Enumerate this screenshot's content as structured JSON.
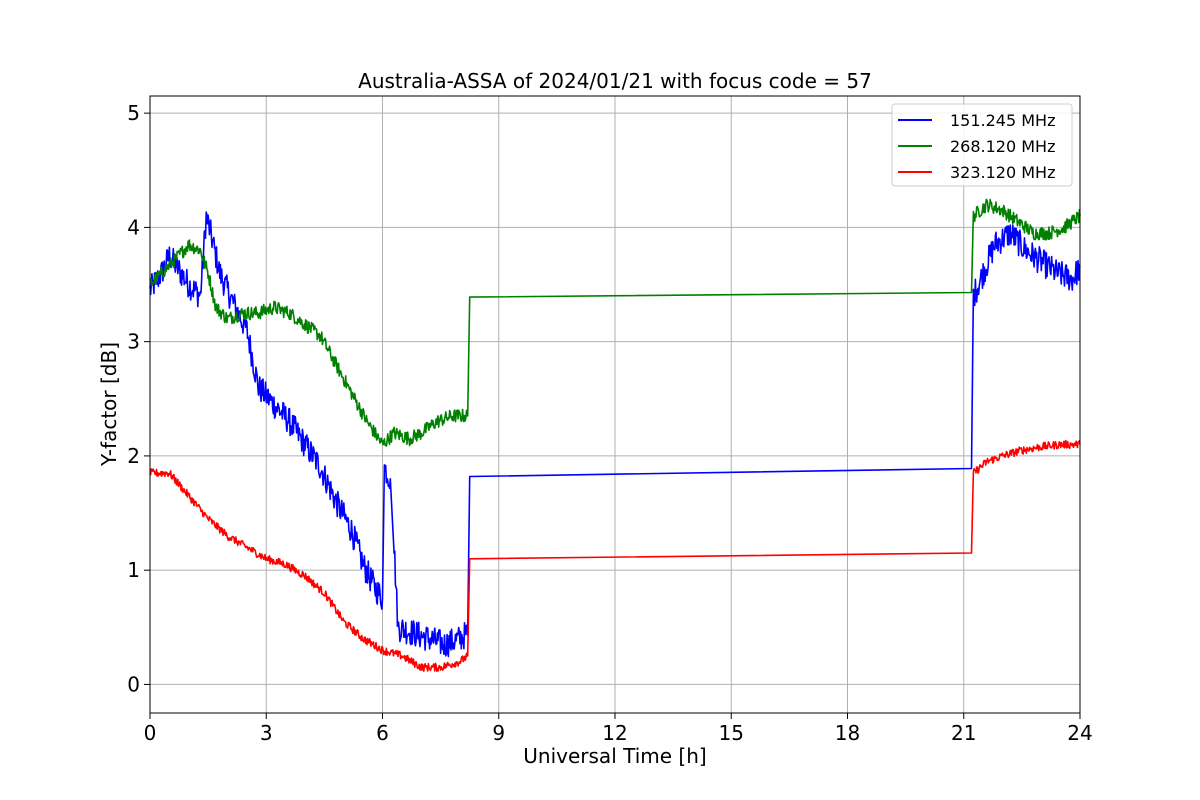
{
  "chart_data": {
    "type": "line",
    "title": "Australia-ASSA of 2024/01/21 with focus code = 57",
    "xlabel": "Universal Time [h]",
    "ylabel": "Y-factor [dB]",
    "xlim": [
      0,
      24
    ],
    "ylim": [
      -0.25,
      5.15
    ],
    "xticks": [
      0,
      3,
      6,
      9,
      12,
      15,
      18,
      21,
      24
    ],
    "yticks": [
      0,
      1,
      2,
      3,
      4,
      5
    ],
    "grid": true,
    "legend_position": "top-right",
    "series": [
      {
        "name": "151.245 MHz",
        "color": "#0000ff",
        "noise": 0.12,
        "points": [
          [
            0,
            3.45
          ],
          [
            0.3,
            3.6
          ],
          [
            0.5,
            3.75
          ],
          [
            0.8,
            3.6
          ],
          [
            1.0,
            3.5
          ],
          [
            1.3,
            3.4
          ],
          [
            1.45,
            4.1
          ],
          [
            1.6,
            3.9
          ],
          [
            1.8,
            3.6
          ],
          [
            2.2,
            3.3
          ],
          [
            2.5,
            3.1
          ],
          [
            2.8,
            2.6
          ],
          [
            3.2,
            2.45
          ],
          [
            3.6,
            2.3
          ],
          [
            4.0,
            2.1
          ],
          [
            4.4,
            1.9
          ],
          [
            4.8,
            1.6
          ],
          [
            5.2,
            1.35
          ],
          [
            5.5,
            1.05
          ],
          [
            5.8,
            0.85
          ],
          [
            6.0,
            0.75
          ],
          [
            6.05,
            1.9
          ],
          [
            6.2,
            1.8
          ],
          [
            6.3,
            1.2
          ],
          [
            6.4,
            0.5
          ],
          [
            6.8,
            0.45
          ],
          [
            7.2,
            0.4
          ],
          [
            7.6,
            0.35
          ],
          [
            8.0,
            0.4
          ],
          [
            8.2,
            0.45
          ],
          [
            8.25,
            1.82
          ],
          [
            21.2,
            1.89
          ],
          [
            21.25,
            3.4
          ],
          [
            21.5,
            3.6
          ],
          [
            21.8,
            3.85
          ],
          [
            22.2,
            3.95
          ],
          [
            22.6,
            3.8
          ],
          [
            23.0,
            3.7
          ],
          [
            23.4,
            3.6
          ],
          [
            23.8,
            3.55
          ],
          [
            24.0,
            3.65
          ]
        ]
      },
      {
        "name": "268.120 MHz",
        "color": "#008000",
        "noise": 0.06,
        "points": [
          [
            0,
            3.5
          ],
          [
            0.3,
            3.6
          ],
          [
            0.6,
            3.7
          ],
          [
            1.0,
            3.85
          ],
          [
            1.3,
            3.8
          ],
          [
            1.5,
            3.6
          ],
          [
            1.7,
            3.3
          ],
          [
            2.0,
            3.2
          ],
          [
            2.4,
            3.25
          ],
          [
            2.8,
            3.25
          ],
          [
            3.2,
            3.3
          ],
          [
            3.6,
            3.25
          ],
          [
            4.0,
            3.15
          ],
          [
            4.4,
            3.05
          ],
          [
            4.8,
            2.8
          ],
          [
            5.2,
            2.55
          ],
          [
            5.6,
            2.3
          ],
          [
            6.0,
            2.1
          ],
          [
            6.3,
            2.2
          ],
          [
            6.7,
            2.15
          ],
          [
            7.0,
            2.2
          ],
          [
            7.4,
            2.3
          ],
          [
            7.8,
            2.35
          ],
          [
            8.2,
            2.35
          ],
          [
            8.25,
            3.39
          ],
          [
            21.2,
            3.43
          ],
          [
            21.25,
            4.1
          ],
          [
            21.6,
            4.2
          ],
          [
            22.0,
            4.15
          ],
          [
            22.4,
            4.05
          ],
          [
            22.8,
            3.95
          ],
          [
            23.2,
            3.95
          ],
          [
            23.6,
            4.0
          ],
          [
            24.0,
            4.1
          ]
        ]
      },
      {
        "name": "323.120 MHz",
        "color": "#ff0000",
        "noise": 0.035,
        "points": [
          [
            0,
            1.85
          ],
          [
            0.5,
            1.85
          ],
          [
            1.0,
            1.65
          ],
          [
            1.5,
            1.45
          ],
          [
            2.0,
            1.3
          ],
          [
            2.5,
            1.2
          ],
          [
            3.0,
            1.1
          ],
          [
            3.5,
            1.05
          ],
          [
            4.0,
            0.95
          ],
          [
            4.5,
            0.8
          ],
          [
            5.0,
            0.55
          ],
          [
            5.5,
            0.4
          ],
          [
            6.0,
            0.3
          ],
          [
            6.5,
            0.25
          ],
          [
            7.0,
            0.15
          ],
          [
            7.5,
            0.15
          ],
          [
            8.0,
            0.2
          ],
          [
            8.2,
            0.25
          ],
          [
            8.25,
            1.1
          ],
          [
            21.2,
            1.15
          ],
          [
            21.25,
            1.85
          ],
          [
            21.6,
            1.95
          ],
          [
            22.0,
            2.0
          ],
          [
            22.5,
            2.05
          ],
          [
            23.0,
            2.08
          ],
          [
            23.5,
            2.1
          ],
          [
            24.0,
            2.1
          ]
        ]
      }
    ]
  }
}
